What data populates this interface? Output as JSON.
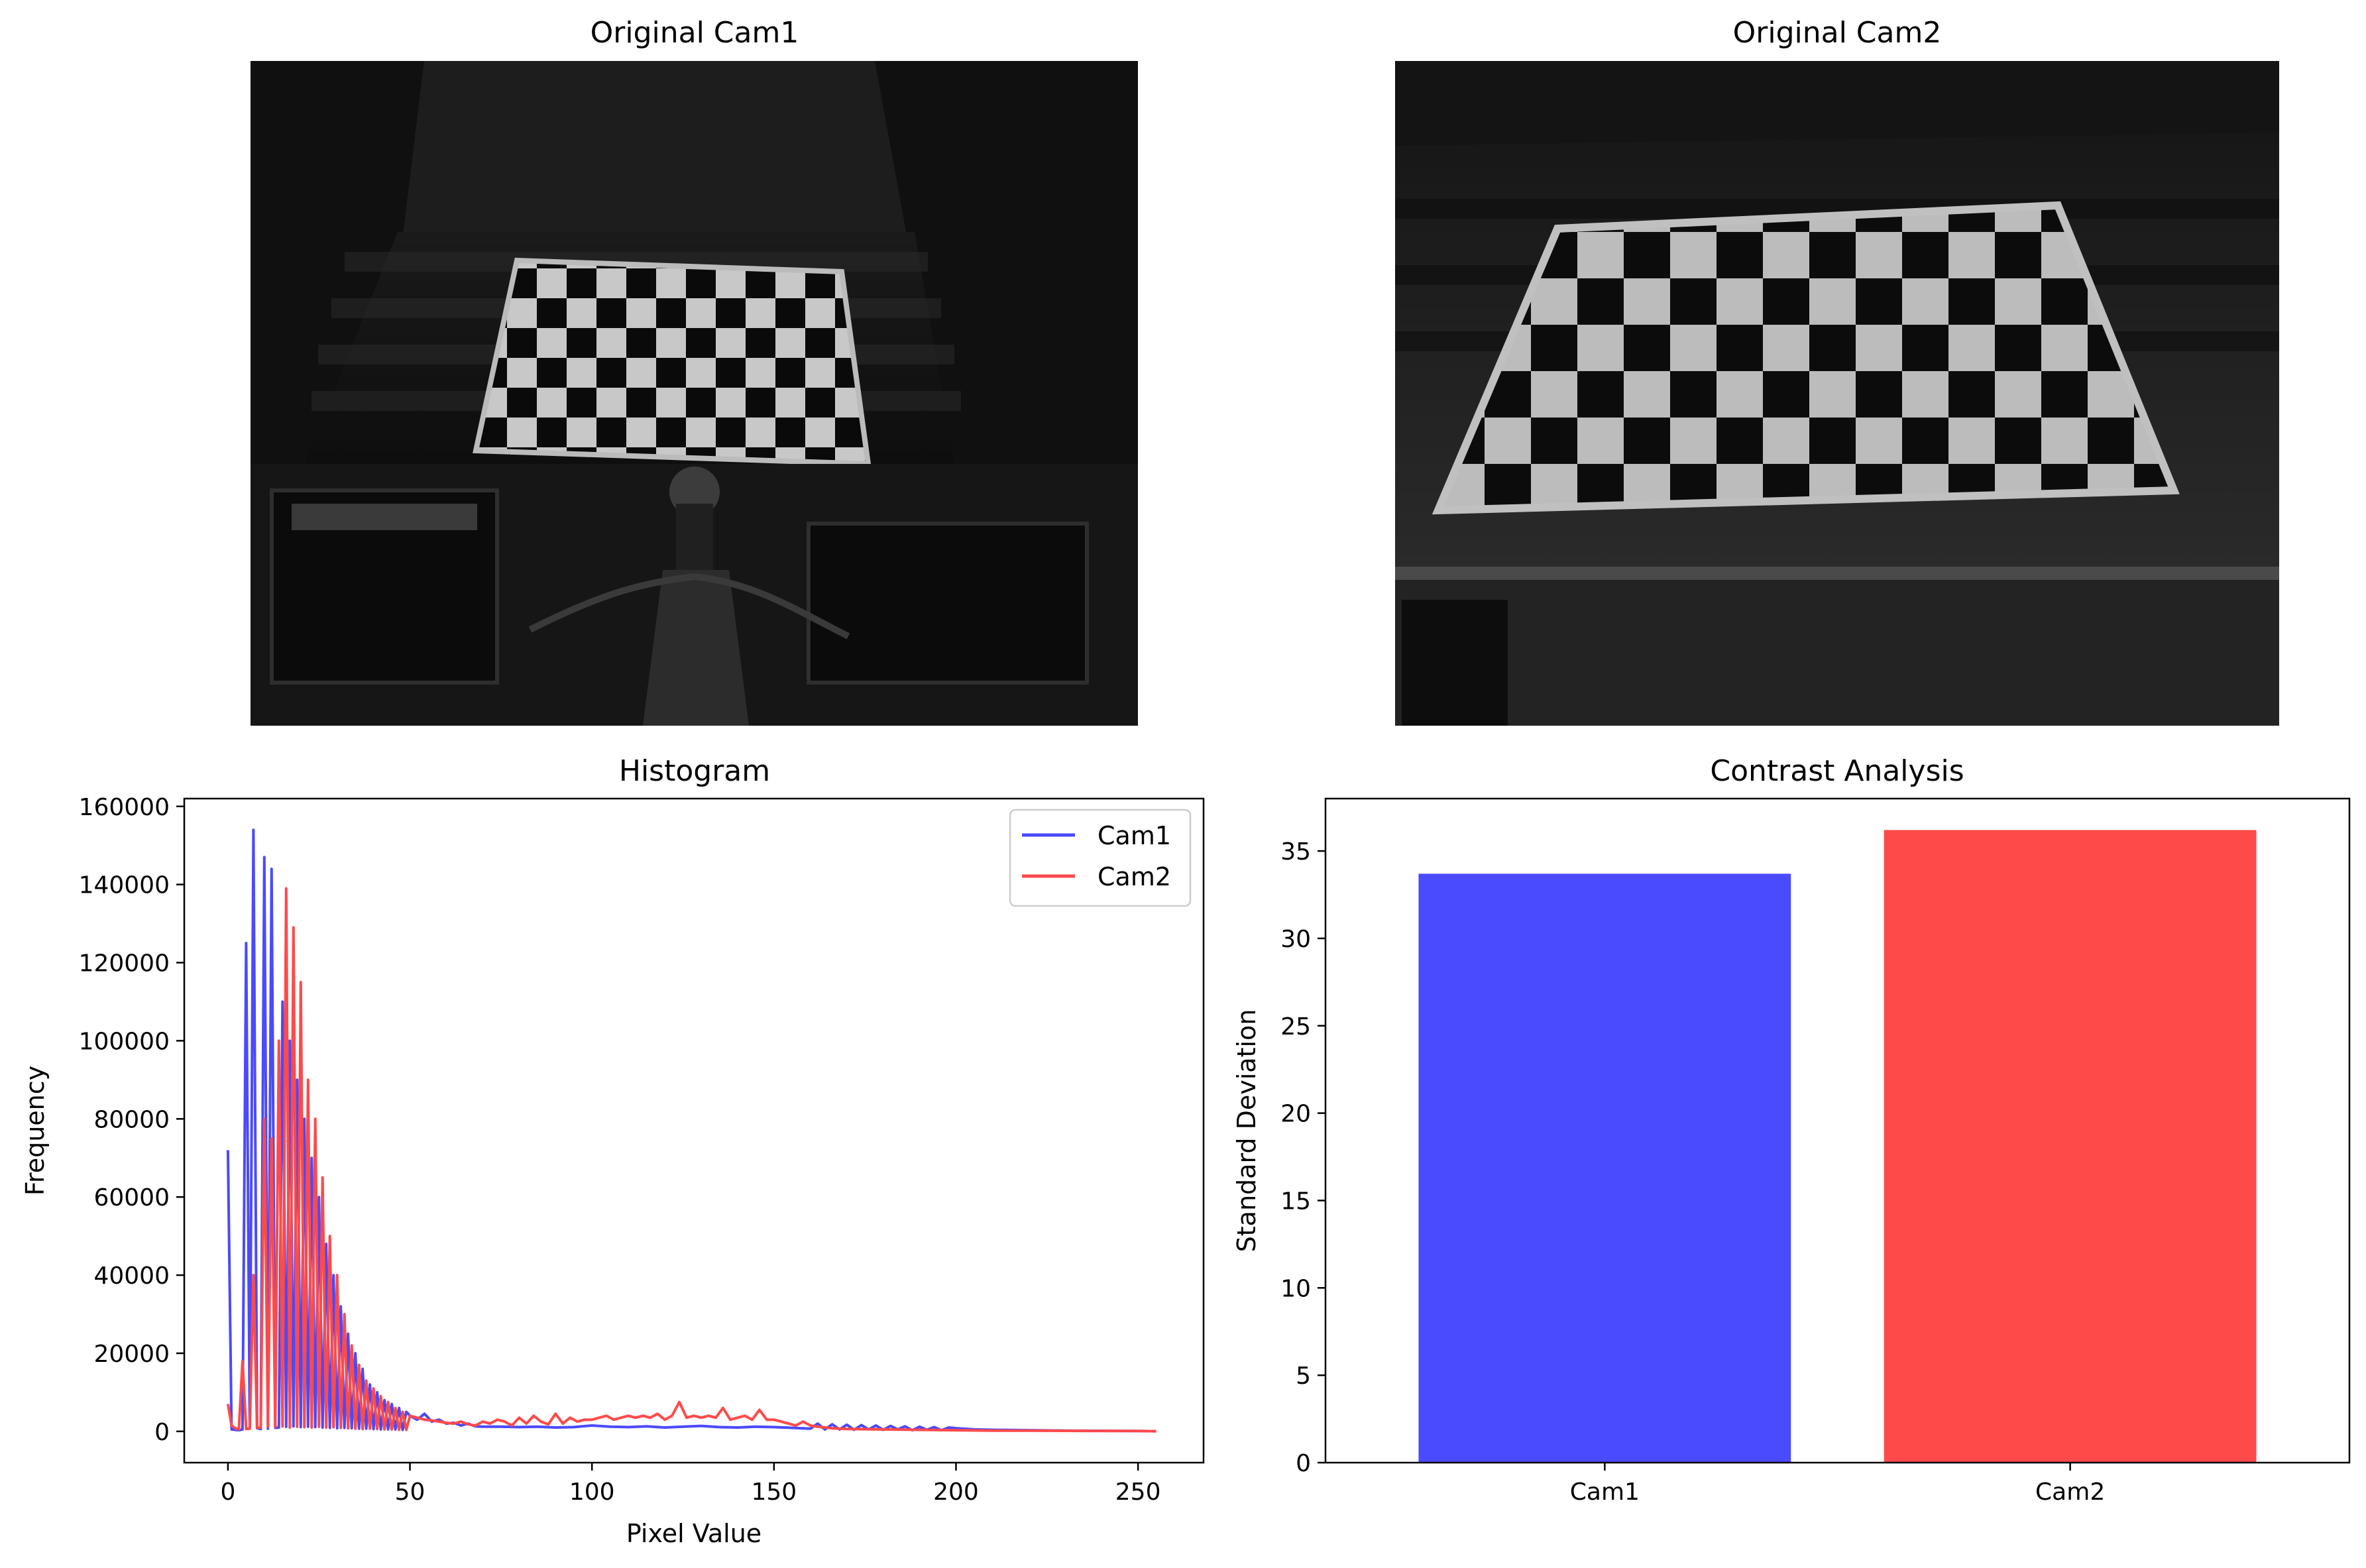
{
  "panels": {
    "cam1_title": "Original Cam1",
    "cam2_title": "Original Cam2"
  },
  "icons": {
    "cam1_image": "checkerboard-photo-icon",
    "cam2_image": "checkerboard-photo-icon"
  },
  "chart_data": [
    {
      "type": "line",
      "title": "Histogram",
      "xlabel": "Pixel Value",
      "ylabel": "Frequency",
      "xlim": [
        -12,
        268
      ],
      "ylim": [
        -8000,
        162000
      ],
      "xticks": [
        0,
        50,
        100,
        150,
        200,
        250
      ],
      "yticks": [
        0,
        20000,
        40000,
        60000,
        80000,
        100000,
        120000,
        140000,
        160000
      ],
      "legend_position": "top-right",
      "grid": false,
      "series": [
        {
          "name": "Cam1",
          "color": "#4a4aff",
          "x": [
            0,
            1,
            2,
            3,
            4,
            5,
            6,
            7,
            8,
            9,
            10,
            11,
            12,
            13,
            14,
            15,
            16,
            17,
            18,
            19,
            20,
            21,
            22,
            23,
            24,
            25,
            26,
            27,
            28,
            29,
            30,
            31,
            32,
            33,
            34,
            35,
            36,
            37,
            38,
            39,
            40,
            41,
            42,
            43,
            44,
            45,
            46,
            47,
            48,
            49,
            50,
            52,
            54,
            56,
            58,
            60,
            62,
            64,
            66,
            68,
            70,
            75,
            80,
            85,
            90,
            95,
            100,
            105,
            110,
            115,
            120,
            125,
            130,
            135,
            140,
            145,
            150,
            155,
            160,
            162,
            164,
            166,
            168,
            170,
            172,
            174,
            176,
            178,
            180,
            182,
            184,
            186,
            188,
            190,
            192,
            194,
            196,
            198,
            200,
            205,
            210,
            220,
            230,
            240,
            250,
            255
          ],
          "values": [
            72000,
            500,
            400,
            300,
            500,
            125000,
            1000,
            154000,
            800,
            600,
            147000,
            700,
            144000,
            900,
            1000,
            110000,
            1200,
            100000,
            1300,
            90000,
            1100,
            80000,
            1200,
            70000,
            1100,
            60000,
            1000,
            48000,
            900,
            40000,
            800,
            32000,
            900,
            25000,
            800,
            20000,
            700,
            16000,
            700,
            12000,
            600,
            10000,
            500,
            8000,
            500,
            7000,
            500,
            6000,
            400,
            5000,
            4000,
            3000,
            4500,
            2500,
            3000,
            2000,
            2200,
            1500,
            2000,
            1300,
            1200,
            1200,
            1100,
            1200,
            1000,
            1100,
            1500,
            1200,
            1100,
            1300,
            1000,
            1200,
            1400,
            1100,
            1000,
            1200,
            1100,
            900,
            700,
            2000,
            500,
            1800,
            500,
            1700,
            400,
            1600,
            500,
            1500,
            400,
            1400,
            500,
            1300,
            300,
            1200,
            400,
            1100,
            300,
            1000,
            800,
            500,
            400,
            300,
            200,
            150,
            100,
            50
          ]
        },
        {
          "name": "Cam2",
          "color": "#ff4a4a",
          "x": [
            0,
            1,
            2,
            3,
            4,
            5,
            6,
            7,
            8,
            9,
            10,
            11,
            12,
            13,
            14,
            15,
            16,
            17,
            18,
            19,
            20,
            21,
            22,
            23,
            24,
            25,
            26,
            27,
            28,
            29,
            30,
            31,
            32,
            33,
            34,
            35,
            36,
            37,
            38,
            39,
            40,
            41,
            42,
            43,
            44,
            45,
            46,
            47,
            48,
            49,
            50,
            52,
            54,
            56,
            58,
            60,
            62,
            64,
            66,
            68,
            70,
            72,
            74,
            76,
            78,
            80,
            82,
            84,
            86,
            88,
            90,
            92,
            94,
            96,
            98,
            100,
            102,
            104,
            106,
            108,
            110,
            112,
            114,
            116,
            118,
            120,
            122,
            124,
            126,
            128,
            130,
            132,
            134,
            136,
            138,
            140,
            142,
            144,
            146,
            148,
            150,
            152,
            154,
            156,
            158,
            160,
            162,
            164,
            166,
            168,
            170,
            180,
            190,
            200,
            210,
            220,
            230,
            240,
            250,
            255
          ],
          "values": [
            7000,
            1500,
            800,
            500,
            18000,
            600,
            700,
            40000,
            900,
            1000,
            80000,
            1200,
            75000,
            1100,
            100000,
            1300,
            139000,
            1000,
            129000,
            1200,
            115000,
            1100,
            90000,
            1000,
            80000,
            1200,
            65000,
            1000,
            50000,
            1100,
            40000,
            900,
            30000,
            800,
            22000,
            700,
            17000,
            600,
            13000,
            700,
            11000,
            600,
            9000,
            500,
            7500,
            500,
            6000,
            400,
            5000,
            400,
            4000,
            3500,
            3000,
            2800,
            2500,
            2200,
            2000,
            2500,
            1800,
            1500,
            2500,
            2000,
            3000,
            2500,
            1500,
            3500,
            2000,
            4000,
            2500,
            1800,
            4500,
            2000,
            3500,
            2500,
            3000,
            3000,
            3500,
            4000,
            3000,
            3500,
            4000,
            3500,
            4000,
            3500,
            4500,
            3000,
            4000,
            7500,
            3500,
            4000,
            3500,
            4000,
            3500,
            6000,
            3000,
            3500,
            4000,
            3000,
            5500,
            3000,
            3000,
            2500,
            2000,
            1500,
            2500,
            1500,
            1200,
            1000,
            800,
            700,
            600,
            500,
            400,
            300,
            200,
            200,
            150,
            100,
            100,
            50
          ]
        }
      ]
    },
    {
      "type": "bar",
      "title": "Contrast Analysis",
      "xlabel": "",
      "ylabel": "Standard Deviation",
      "categories": [
        "Cam1",
        "Cam2"
      ],
      "values": [
        33.7,
        36.2
      ],
      "colors": [
        "#4a4aff",
        "#ff4a4a"
      ],
      "ylim": [
        0,
        38
      ],
      "yticks": [
        0,
        5,
        10,
        15,
        20,
        25,
        30,
        35
      ],
      "grid": false
    }
  ]
}
